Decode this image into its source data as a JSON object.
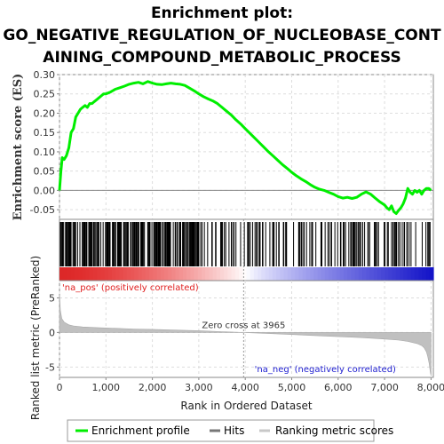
{
  "title_lines": [
    "Enrichment plot:",
    "GO_NEGATIVE_REGULATION_OF_NUCLEOBASE_CONT",
    "AINING_COMPOUND_METABOLIC_PROCESS"
  ],
  "chart_data": [
    {
      "type": "line",
      "panel": "enrichment",
      "ylabel": "Enrichment score (ES)",
      "ylim": [
        -0.075,
        0.3
      ],
      "yticks": [
        "0.30",
        "0.25",
        "0.20",
        "0.15",
        "0.10",
        "0.05",
        "0.00",
        "-0.05"
      ],
      "ytick_values": [
        0.3,
        0.25,
        0.2,
        0.15,
        0.1,
        0.05,
        0.0,
        -0.05
      ],
      "xlim": [
        0,
        8050
      ],
      "grid": true,
      "series": [
        {
          "name": "Enrichment profile",
          "color": "#00ee00",
          "x": [
            0,
            30,
            60,
            100,
            150,
            200,
            250,
            300,
            350,
            400,
            450,
            500,
            550,
            600,
            650,
            700,
            750,
            800,
            850,
            900,
            950,
            1000,
            1100,
            1200,
            1300,
            1400,
            1500,
            1600,
            1700,
            1800,
            1900,
            2000,
            2100,
            2200,
            2300,
            2400,
            2500,
            2600,
            2700,
            2800,
            2900,
            3000,
            3100,
            3200,
            3300,
            3400,
            3500,
            3600,
            3700,
            3800,
            3900,
            4000,
            4100,
            4200,
            4300,
            4400,
            4500,
            4600,
            4700,
            4800,
            4900,
            5000,
            5100,
            5200,
            5300,
            5400,
            5500,
            5600,
            5700,
            5800,
            5900,
            6000,
            6100,
            6200,
            6300,
            6400,
            6500,
            6600,
            6700,
            6800,
            6900,
            7000,
            7050,
            7100,
            7150,
            7200,
            7250,
            7300,
            7350,
            7400,
            7450,
            7500,
            7550,
            7600,
            7650,
            7700,
            7750,
            7800,
            7850,
            7900,
            7950,
            8000
          ],
          "values": [
            0.0,
            0.05,
            0.085,
            0.08,
            0.09,
            0.11,
            0.15,
            0.16,
            0.19,
            0.2,
            0.21,
            0.215,
            0.22,
            0.215,
            0.225,
            0.225,
            0.23,
            0.235,
            0.24,
            0.245,
            0.25,
            0.25,
            0.255,
            0.262,
            0.266,
            0.27,
            0.275,
            0.278,
            0.28,
            0.276,
            0.282,
            0.278,
            0.275,
            0.274,
            0.276,
            0.278,
            0.276,
            0.275,
            0.272,
            0.265,
            0.258,
            0.25,
            0.243,
            0.237,
            0.232,
            0.225,
            0.215,
            0.205,
            0.195,
            0.183,
            0.172,
            0.16,
            0.148,
            0.136,
            0.124,
            0.112,
            0.1,
            0.089,
            0.078,
            0.067,
            0.057,
            0.047,
            0.038,
            0.03,
            0.023,
            0.015,
            0.008,
            0.003,
            0.0,
            -0.005,
            -0.01,
            -0.016,
            -0.02,
            -0.018,
            -0.021,
            -0.018,
            -0.01,
            -0.004,
            -0.01,
            -0.02,
            -0.03,
            -0.038,
            -0.045,
            -0.05,
            -0.04,
            -0.055,
            -0.06,
            -0.052,
            -0.045,
            -0.035,
            -0.02,
            0.005,
            -0.005,
            -0.01,
            0.0,
            -0.005,
            0.0,
            -0.01,
            0.0,
            0.005,
            0.005,
            0.0
          ]
        }
      ]
    },
    {
      "type": "hits",
      "panel": "hits",
      "series": [
        {
          "name": "Hits",
          "color": "#000000"
        }
      ]
    },
    {
      "type": "area",
      "panel": "ranking",
      "xlabel": "Rank in Ordered Dataset",
      "ylabel": "Ranked list metric (PreRanked)",
      "ylim": [
        -6.5,
        7.5
      ],
      "yticks": [
        "5",
        "0",
        "-5"
      ],
      "ytick_values": [
        5,
        0,
        -5
      ],
      "xlim": [
        0,
        8050
      ],
      "xticks": [
        "0",
        "1,000",
        "2,000",
        "3,000",
        "4,000",
        "5,000",
        "6,000",
        "7,000",
        "8,000"
      ],
      "xtick_values": [
        0,
        1000,
        2000,
        3000,
        4000,
        5000,
        6000,
        7000,
        8000
      ],
      "zero_cross": 3965,
      "zero_cross_label": "Zero cross at 3965",
      "pos_label": "'na_pos' (positively correlated)",
      "neg_label": "'na_neg' (negatively correlated)",
      "series": [
        {
          "name": "Ranking metric scores",
          "color": "#c0c0c0",
          "x": [
            0,
            20,
            50,
            100,
            200,
            300,
            500,
            800,
            1200,
            1600,
            2000,
            2500,
            3000,
            3500,
            3965,
            4500,
            5000,
            5500,
            6000,
            6500,
            7000,
            7300,
            7500,
            7700,
            7800,
            7850,
            7900,
            7930,
            7960,
            7980,
            8000
          ],
          "values": [
            5.5,
            3.2,
            2.0,
            1.5,
            1.1,
            0.95,
            0.8,
            0.7,
            0.6,
            0.5,
            0.45,
            0.35,
            0.25,
            0.12,
            0.0,
            -0.15,
            -0.3,
            -0.45,
            -0.6,
            -0.75,
            -0.95,
            -1.1,
            -1.3,
            -1.6,
            -1.9,
            -2.2,
            -2.8,
            -3.5,
            -4.5,
            -5.5,
            -6.3
          ]
        }
      ]
    }
  ],
  "legend": {
    "items": [
      {
        "label": "Enrichment profile",
        "color": "#00ee00"
      },
      {
        "label": "Hits",
        "color": "#777777"
      },
      {
        "label": "Ranking metric scores",
        "color": "#c8c8c8"
      }
    ]
  },
  "colors": {
    "grid": "#dddddd",
    "frame": "#888888",
    "pos_text": "#e02020",
    "neg_text": "#2020d0",
    "zero_line": "#d9d9d9"
  }
}
